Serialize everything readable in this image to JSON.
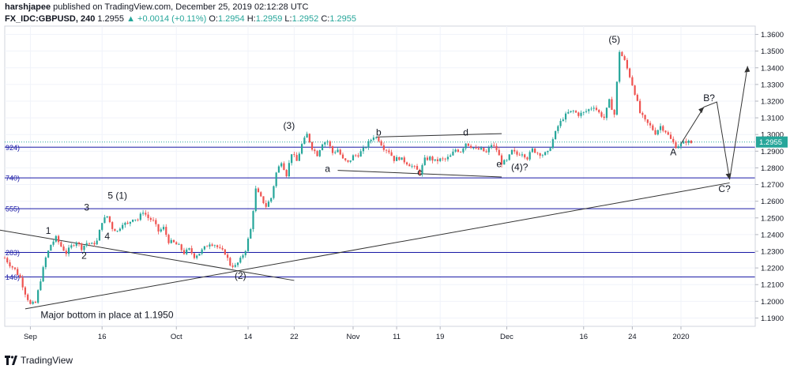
{
  "header": {
    "user": "harshjapee",
    "published": "published on TradingView.com, December 25, 2019 02:12:28 UTC",
    "symbol": "FX_IDC:GBPUSD, 240",
    "last": "1.2955",
    "change_arrow": "▲",
    "change": "+0.0014 (+0.11%)",
    "o_label": "O:",
    "o_value": "1.2954",
    "h_label": "H:",
    "h_value": "1.2959",
    "l_label": "L:",
    "l_value": "1.2952",
    "c_label": "C:",
    "c_value": "1.2955"
  },
  "footer": {
    "brand": "TradingView",
    "icon": "tradingview-logo-icon"
  },
  "colors": {
    "up": "#26a69a",
    "down": "#ef5350",
    "fib": "#1a1aa6",
    "trend": "#333333",
    "price_badge": "#26a69a"
  },
  "chart_data": {
    "type": "candlestick",
    "ylim": [
      1.185,
      1.365
    ],
    "y_ticks": [
      "1.1900",
      "1.2000",
      "1.2100",
      "1.2200",
      "1.2300",
      "1.2400",
      "1.2500",
      "1.2600",
      "1.2700",
      "1.2800",
      "1.2900",
      "1.3000",
      "1.3100",
      "1.3200",
      "1.3300",
      "1.3400",
      "1.3500",
      "1.3600"
    ],
    "x_ticks": [
      "Sep",
      "16",
      "Oct",
      "14",
      "22",
      "Nov",
      "11",
      "19",
      "Dec",
      "16",
      "24",
      "2020"
    ],
    "current_price": "1.2955",
    "fib_levels": [
      {
        "label": "924)",
        "value": 1.2924
      },
      {
        "label": "740)",
        "value": 1.274
      },
      {
        "label": "555)",
        "value": 1.2555
      },
      {
        "label": "283)",
        "value": 1.2293
      },
      {
        "label": "146)",
        "value": 1.2146
      }
    ],
    "price_path": [
      [
        0,
        1.226
      ],
      [
        2,
        1.222
      ],
      [
        4,
        1.219
      ],
      [
        6,
        1.214
      ],
      [
        8,
        1.205
      ],
      [
        10,
        1.198
      ],
      [
        12,
        1.199
      ],
      [
        14,
        1.213
      ],
      [
        16,
        1.226
      ],
      [
        18,
        1.234
      ],
      [
        20,
        1.238
      ],
      [
        22,
        1.233
      ],
      [
        24,
        1.229
      ],
      [
        26,
        1.233
      ],
      [
        28,
        1.236
      ],
      [
        30,
        1.232
      ],
      [
        32,
        1.235
      ],
      [
        34,
        1.234
      ],
      [
        36,
        1.236
      ],
      [
        38,
        1.248
      ],
      [
        40,
        1.251
      ],
      [
        42,
        1.244
      ],
      [
        44,
        1.242
      ],
      [
        46,
        1.247
      ],
      [
        48,
        1.246
      ],
      [
        50,
        1.25
      ],
      [
        52,
        1.249
      ],
      [
        54,
        1.254
      ],
      [
        56,
        1.25
      ],
      [
        58,
        1.248
      ],
      [
        60,
        1.242
      ],
      [
        62,
        1.244
      ],
      [
        64,
        1.236
      ],
      [
        66,
        1.235
      ],
      [
        68,
        1.233
      ],
      [
        70,
        1.229
      ],
      [
        72,
        1.231
      ],
      [
        74,
        1.227
      ],
      [
        76,
        1.229
      ],
      [
        78,
        1.232
      ],
      [
        80,
        1.235
      ],
      [
        82,
        1.234
      ],
      [
        84,
        1.231
      ],
      [
        86,
        1.229
      ],
      [
        88,
        1.222
      ],
      [
        90,
        1.221
      ],
      [
        92,
        1.225
      ],
      [
        94,
        1.231
      ],
      [
        96,
        1.243
      ],
      [
        98,
        1.267
      ],
      [
        100,
        1.262
      ],
      [
        102,
        1.257
      ],
      [
        104,
        1.262
      ],
      [
        106,
        1.277
      ],
      [
        108,
        1.284
      ],
      [
        110,
        1.276
      ],
      [
        112,
        1.289
      ],
      [
        114,
        1.284
      ],
      [
        116,
        1.294
      ],
      [
        118,
        1.3
      ],
      [
        120,
        1.292
      ],
      [
        122,
        1.288
      ],
      [
        124,
        1.295
      ],
      [
        126,
        1.296
      ],
      [
        128,
        1.289
      ],
      [
        130,
        1.291
      ],
      [
        132,
        1.285
      ],
      [
        134,
        1.283
      ],
      [
        136,
        1.287
      ],
      [
        138,
        1.288
      ],
      [
        140,
        1.291
      ],
      [
        142,
        1.295
      ],
      [
        144,
        1.299
      ],
      [
        146,
        1.297
      ],
      [
        148,
        1.292
      ],
      [
        150,
        1.29
      ],
      [
        152,
        1.285
      ],
      [
        154,
        1.286
      ],
      [
        156,
        1.284
      ],
      [
        158,
        1.282
      ],
      [
        160,
        1.28
      ],
      [
        162,
        1.277
      ],
      [
        164,
        1.285
      ],
      [
        166,
        1.286
      ],
      [
        168,
        1.284
      ],
      [
        170,
        1.285
      ],
      [
        172,
        1.285
      ],
      [
        174,
        1.287
      ],
      [
        176,
        1.291
      ],
      [
        178,
        1.29
      ],
      [
        180,
        1.295
      ],
      [
        182,
        1.293
      ],
      [
        184,
        1.291
      ],
      [
        186,
        1.291
      ],
      [
        188,
        1.289
      ],
      [
        190,
        1.294
      ],
      [
        192,
        1.291
      ],
      [
        194,
        1.283
      ],
      [
        196,
        1.284
      ],
      [
        198,
        1.29
      ],
      [
        200,
        1.288
      ],
      [
        202,
        1.289
      ],
      [
        204,
        1.286
      ],
      [
        206,
        1.291
      ],
      [
        208,
        1.289
      ],
      [
        210,
        1.288
      ],
      [
        212,
        1.289
      ],
      [
        214,
        1.297
      ],
      [
        216,
        1.305
      ],
      [
        218,
        1.31
      ],
      [
        220,
        1.313
      ],
      [
        222,
        1.314
      ],
      [
        224,
        1.312
      ],
      [
        226,
        1.313
      ],
      [
        228,
        1.315
      ],
      [
        230,
        1.317
      ],
      [
        232,
        1.313
      ],
      [
        234,
        1.31
      ],
      [
        236,
        1.32
      ],
      [
        238,
        1.312
      ],
      [
        240,
        1.35
      ],
      [
        242,
        1.344
      ],
      [
        244,
        1.335
      ],
      [
        246,
        1.325
      ],
      [
        248,
        1.313
      ],
      [
        250,
        1.308
      ],
      [
        252,
        1.305
      ],
      [
        254,
        1.301
      ],
      [
        256,
        1.305
      ],
      [
        258,
        1.302
      ],
      [
        260,
        1.297
      ],
      [
        262,
        1.293
      ],
      [
        264,
        1.294
      ],
      [
        266,
        1.296
      ],
      [
        268,
        1.295
      ]
    ],
    "wave_labels": [
      {
        "text": "1",
        "t": 17,
        "v": 1.2405
      },
      {
        "text": "2",
        "t": 31,
        "v": 1.2255
      },
      {
        "text": "3",
        "t": 32,
        "v": 1.2545
      },
      {
        "text": "4",
        "t": 40,
        "v": 1.237
      },
      {
        "text": "5 (1)",
        "t": 44,
        "v": 1.2615
      },
      {
        "text": "(2)",
        "t": 92,
        "v": 1.2135
      },
      {
        "text": "(3)",
        "t": 111,
        "v": 1.3035
      },
      {
        "text": "a",
        "t": 126,
        "v": 1.2775
      },
      {
        "text": "b",
        "t": 146,
        "v": 1.2995
      },
      {
        "text": "c",
        "t": 162,
        "v": 1.2755
      },
      {
        "text": "d",
        "t": 180,
        "v": 1.2995
      },
      {
        "text": "e",
        "t": 193,
        "v": 1.2805
      },
      {
        "text": "(4)?",
        "t": 201,
        "v": 1.2785
      },
      {
        "text": "(5)",
        "t": 238,
        "v": 1.355
      },
      {
        "text": "A",
        "t": 261,
        "v": 1.2875
      },
      {
        "text": "B?",
        "t": 275,
        "v": 1.32
      },
      {
        "text": "C?",
        "t": 281,
        "v": 1.2655
      }
    ],
    "annotation": {
      "text": "Major bottom in place at 1.1950",
      "t": 14,
      "v": 1.19
    },
    "trend_lines": [
      {
        "from": [
          -5,
          1.2435
        ],
        "to": [
          113,
          1.2125
        ]
      },
      {
        "from": [
          8,
          1.1955
        ],
        "to": [
          283,
          1.271
        ]
      },
      {
        "from": [
          130,
          1.2785
        ],
        "to": [
          194,
          1.2745
        ]
      },
      {
        "from": [
          145,
          1.2985
        ],
        "to": [
          194,
          1.3005
        ]
      }
    ],
    "projection": [
      [
        264,
        1.2945
      ],
      [
        273,
        1.3165
      ],
      [
        278,
        1.3195
      ],
      [
        283,
        1.273
      ],
      [
        290,
        1.341
      ]
    ]
  }
}
